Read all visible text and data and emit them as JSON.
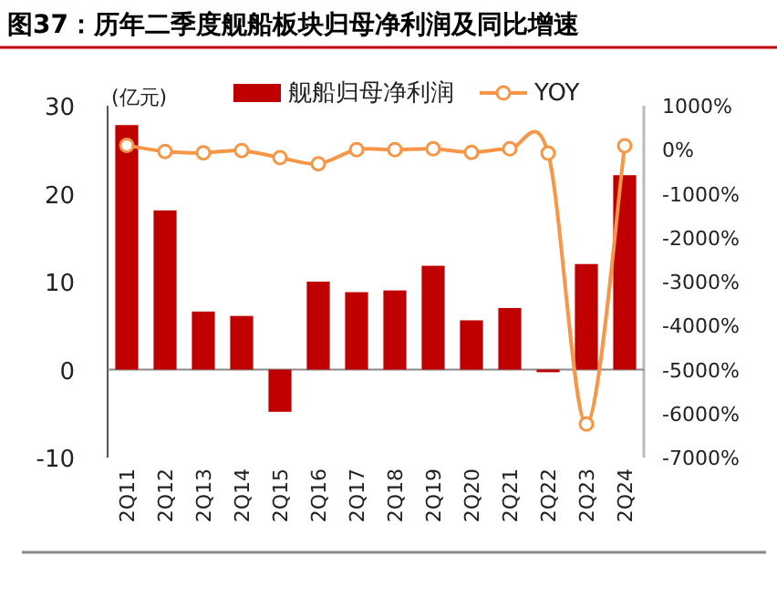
{
  "chart_data": {
    "type": "bar",
    "title": "图37：历年二季度舰船板块归母净利润及同比增速",
    "ylabel": "(亿元)",
    "categories": [
      "2Q11",
      "2Q12",
      "2Q13",
      "2Q14",
      "2Q15",
      "2Q16",
      "2Q17",
      "2Q18",
      "2Q19",
      "2Q20",
      "2Q21",
      "2Q22",
      "2Q23",
      "2Q24"
    ],
    "series": [
      {
        "name": "舰船归母净利润",
        "color": "#c00000",
        "values": [
          27.8,
          18.1,
          6.6,
          6.1,
          -4.8,
          10.0,
          8.8,
          9.0,
          11.8,
          5.6,
          7.0,
          -0.3,
          12.0,
          22.1
        ]
      },
      {
        "name": "YOY",
        "type": "line",
        "axis": "y2",
        "color": "#f79646",
        "marker": "circle",
        "values": [
          100,
          -40,
          -70,
          -20,
          -180,
          -320,
          0,
          0,
          20,
          -60,
          20,
          -80,
          -6240,
          90
        ]
      }
    ],
    "ylim": [
      -10,
      30
    ],
    "yticks": [
      -10,
      0,
      10,
      20,
      30
    ],
    "y2lim": [
      -7000,
      1000
    ],
    "y2ticks": [
      {
        "value": -7000,
        "label": "-7000%"
      },
      {
        "value": -6000,
        "label": "-6000%"
      },
      {
        "value": -5000,
        "label": "-5000%"
      },
      {
        "value": -4000,
        "label": "-4000%"
      },
      {
        "value": -3000,
        "label": "-3000%"
      },
      {
        "value": -2000,
        "label": "-2000%"
      },
      {
        "value": -1000,
        "label": "-1000%"
      },
      {
        "value": 0,
        "label": "0%"
      },
      {
        "value": 1000,
        "label": "1000%"
      }
    ],
    "legend": "top"
  }
}
